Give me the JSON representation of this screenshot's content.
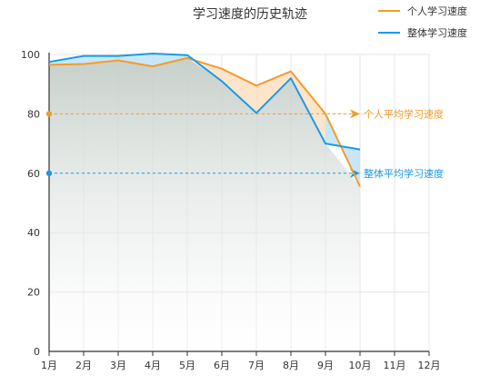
{
  "chart_data": {
    "type": "line",
    "title": "学习速度的历史轨迹",
    "categories": [
      "1月",
      "2月",
      "3月",
      "4月",
      "5月",
      "6月",
      "7月",
      "8月",
      "9月",
      "10月",
      "11月",
      "12月"
    ],
    "ylim": [
      0,
      100
    ],
    "yticks": [
      0,
      20,
      40,
      60,
      80,
      100
    ],
    "grid": true,
    "legend_position": "top-right",
    "series": [
      {
        "name": "个人学习速度",
        "color": "#f39c2a",
        "values": [
          96.5,
          96.8,
          98,
          96,
          98.8,
          95.2,
          89.5,
          94.3,
          80,
          55.5,
          null,
          null
        ]
      },
      {
        "name": "整体学习速度",
        "color": "#1a9be6",
        "values": [
          97.5,
          99.5,
          99.5,
          100.3,
          99.8,
          91,
          80.3,
          92,
          70,
          68,
          null,
          null
        ]
      }
    ],
    "reference_lines": [
      {
        "label": "个人平均学习速度",
        "value": 80,
        "color": "#f39c2a"
      },
      {
        "label": "整体平均学习速度",
        "value": 60,
        "color": "#1a9be6"
      }
    ]
  }
}
